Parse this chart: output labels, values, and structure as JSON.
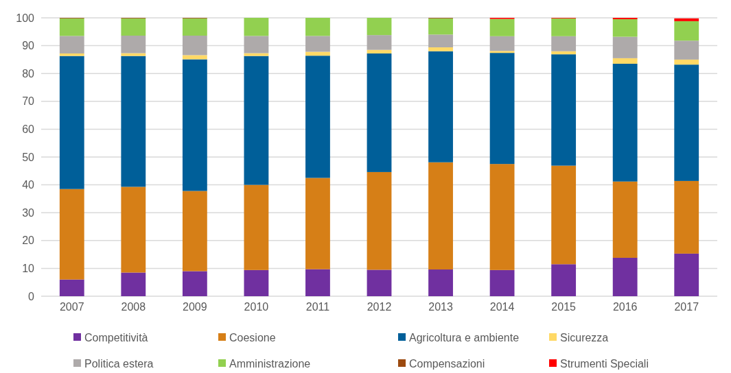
{
  "chart_data": {
    "type": "bar",
    "stacked": true,
    "categories": [
      "2007",
      "2008",
      "2009",
      "2010",
      "2011",
      "2012",
      "2013",
      "2014",
      "2015",
      "2016",
      "2017"
    ],
    "series": [
      {
        "name": "Competitività",
        "color": "#7030a0",
        "values": [
          6,
          8.5,
          9,
          9.4,
          9.7,
          9.5,
          9.6,
          9.4,
          11.5,
          13.8,
          15.3
        ]
      },
      {
        "name": "Coesione",
        "color": "#d67f17",
        "values": [
          32.5,
          30.8,
          28.8,
          30.6,
          32.8,
          35.1,
          38.5,
          38.1,
          35.4,
          27.4,
          26.1
        ]
      },
      {
        "name": "Agricoltura e ambiente",
        "color": "#005f99",
        "values": [
          47.8,
          47,
          47.3,
          46.3,
          43.9,
          42.6,
          39.9,
          39.9,
          40,
          42.3,
          41.8
        ]
      },
      {
        "name": "Sicurezza",
        "color": "#ffd966",
        "values": [
          0.9,
          1,
          1.5,
          1,
          1.4,
          1.3,
          1.4,
          0.7,
          1.1,
          2,
          1.8
        ]
      },
      {
        "name": "Politica estera",
        "color": "#aeaaaa",
        "values": [
          6.3,
          6.3,
          7,
          6.2,
          5.7,
          5.3,
          4.6,
          5.3,
          5.4,
          7.7,
          6.8
        ]
      },
      {
        "name": "Amministrazione",
        "color": "#92d050",
        "values": [
          6.3,
          6.2,
          6.2,
          6.5,
          6.5,
          6.2,
          5.8,
          6.2,
          6.4,
          6.3,
          7
        ]
      },
      {
        "name": "Compensazioni",
        "color": "#9c4a10",
        "values": [
          0.2,
          0.2,
          0.2,
          0,
          0,
          0,
          0.2,
          0,
          0,
          0,
          0
        ]
      },
      {
        "name": "Strumenti Speciali",
        "color": "#ff0000",
        "values": [
          0,
          0,
          0,
          0,
          0,
          0,
          0,
          0.4,
          0.2,
          0.5,
          1
        ]
      }
    ],
    "ylim": [
      0,
      100
    ],
    "yticks": [
      0,
      10,
      20,
      30,
      40,
      50,
      60,
      70,
      80,
      90,
      100
    ],
    "grid": "y",
    "legend": "bottom"
  }
}
